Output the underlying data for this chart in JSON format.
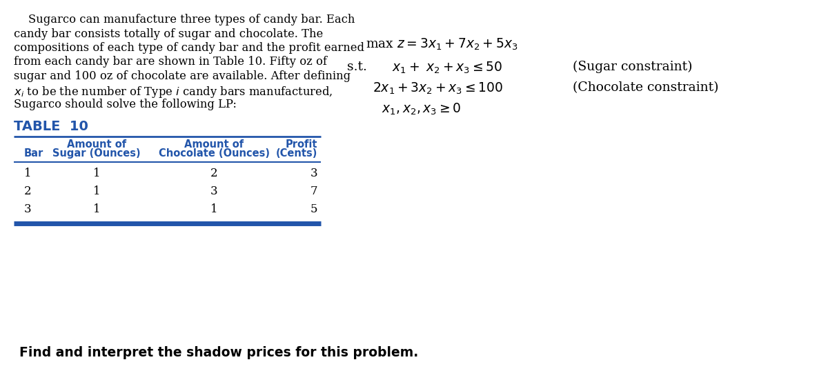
{
  "bg_color": "#ffffff",
  "blue_color": "#2255aa",
  "table_title_color": "#2255aa",
  "table_header_color": "#2255aa",
  "table_border_color": "#2255aa",
  "black": "#000000",
  "para_lines": [
    "    Sugarco can manufacture three types of candy bar. Each",
    "candy bar consists totally of sugar and chocolate. The",
    "compositions of each type of candy bar and the profit earned",
    "from each candy bar are shown in Table 10. Fifty oz of",
    "sugar and 100 oz of chocolate are available. After defining",
    "$x_i$ to be the number of Type $i$ candy bars manufactured,",
    "Sugarco should solve the following LP:"
  ],
  "table_title": "TABLE  10",
  "col_labels_line1": [
    "",
    "Amount of",
    "Amount of",
    "Profit"
  ],
  "col_labels_line2": [
    "Bar",
    "Sugar (Ounces)",
    "Chocolate (Ounces)",
    "(Cents)"
  ],
  "table_data": [
    [
      "1",
      "1",
      "2",
      "3"
    ],
    [
      "2",
      "1",
      "3",
      "7"
    ],
    [
      "3",
      "1",
      "1",
      "5"
    ]
  ],
  "footer": "Find and interpret the shadow prices for this problem.",
  "lp_obj": "max $z = 3x_1 + 7x_2 + 5x_3$",
  "lp_st": "s.t.",
  "lp_c1": "$x_1 +\\  x_2 + x_3 \\leq 50$",
  "lp_c1_note": "(Sugar constraint)",
  "lp_c2": "$2x_1 + 3x_2 + x_3 \\leq 100$",
  "lp_c2_note": "(Chocolate constraint)",
  "lp_c3": "$x_1, x_2, x_3 \\geq 0$",
  "para_fontsize": 11.8,
  "lp_fontsize": 13.5,
  "table_fontsize": 10.5,
  "footer_fontsize": 13.5
}
